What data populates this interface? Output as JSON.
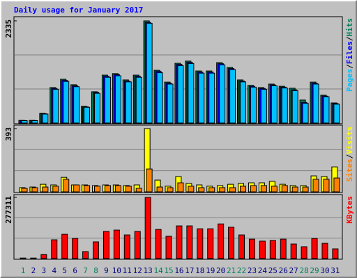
{
  "chart_data": [
    {
      "type": "bar",
      "title": "Daily usage for January 2017",
      "categories": [
        "1",
        "2",
        "3",
        "4",
        "5",
        "6",
        "7",
        "8",
        "9",
        "10",
        "11",
        "12",
        "13",
        "14",
        "15",
        "16",
        "17",
        "18",
        "19",
        "20",
        "21",
        "22",
        "23",
        "24",
        "25",
        "26",
        "27",
        "28",
        "29",
        "30",
        "31"
      ],
      "category_colors": [
        "#00805c",
        "#000080",
        "#000080",
        "#000080",
        "#000080",
        "#000080",
        "#00805c",
        "#00805c",
        "#000080",
        "#000080",
        "#000080",
        "#000080",
        "#000080",
        "#00805c",
        "#00805c",
        "#000080",
        "#000080",
        "#000080",
        "#000080",
        "#000080",
        "#00805c",
        "#00805c",
        "#000080",
        "#000080",
        "#000080",
        "#000080",
        "#000080",
        "#00805c",
        "#00805c",
        "#000080",
        "#000080"
      ],
      "ylim": [
        0,
        2335
      ],
      "yticks": [
        2335
      ],
      "series": [
        {
          "name": "Hits",
          "color": "#00805c",
          "values": [
            60,
            60,
            220,
            810,
            1000,
            875,
            380,
            715,
            1095,
            1130,
            985,
            1095,
            2335,
            1205,
            935,
            1365,
            1415,
            1190,
            1190,
            1380,
            1270,
            985,
            860,
            810,
            890,
            840,
            795,
            525,
            935,
            635,
            460
          ]
        },
        {
          "name": "Files",
          "color": "#0000ff",
          "values": [
            57,
            57,
            212,
            790,
            975,
            850,
            370,
            700,
            1070,
            1105,
            960,
            1070,
            2300,
            1180,
            910,
            1340,
            1390,
            1165,
            1165,
            1355,
            1245,
            960,
            840,
            790,
            870,
            820,
            760,
            470,
            910,
            615,
            445
          ]
        },
        {
          "name": "Pages",
          "color": "#00c0ff",
          "values": [
            55,
            55,
            205,
            770,
            950,
            830,
            360,
            680,
            1045,
            1080,
            940,
            1045,
            2280,
            1150,
            890,
            1310,
            1360,
            1140,
            1140,
            1330,
            1220,
            940,
            820,
            770,
            850,
            800,
            740,
            450,
            890,
            600,
            430
          ]
        }
      ]
    },
    {
      "type": "bar",
      "ylim": [
        0,
        393
      ],
      "yticks": [
        393
      ],
      "series": [
        {
          "name": "Visits",
          "color": "#ffff00",
          "values": [
            26,
            30,
            47,
            43,
            90,
            43,
            43,
            39,
            43,
            43,
            39,
            43,
            393,
            73,
            35,
            95,
            52,
            43,
            35,
            39,
            47,
            52,
            56,
            56,
            65,
            47,
            39,
            39,
            99,
            95,
            155
          ]
        },
        {
          "name": "Sites",
          "color": "#ff8000",
          "values": [
            22,
            26,
            30,
            35,
            78,
            43,
            39,
            35,
            39,
            39,
            35,
            22,
            142,
            30,
            26,
            56,
            35,
            26,
            26,
            26,
            26,
            35,
            39,
            39,
            35,
            39,
            30,
            30,
            78,
            78,
            86
          ]
        }
      ]
    },
    {
      "type": "bar",
      "ylim": [
        0,
        277311
      ],
      "yticks": [
        277311
      ],
      "series": [
        {
          "name": "KBytes",
          "color": "#ff0000",
          "values": [
            2500,
            2500,
            18000,
            85000,
            110000,
            91000,
            31500,
            75600,
            123000,
            129000,
            107000,
            123000,
            277311,
            132000,
            101000,
            148000,
            148000,
            135000,
            135000,
            157000,
            142000,
            107000,
            88000,
            79000,
            82000,
            88000,
            66000,
            53600,
            91000,
            69000,
            44000
          ]
        }
      ]
    }
  ]
}
